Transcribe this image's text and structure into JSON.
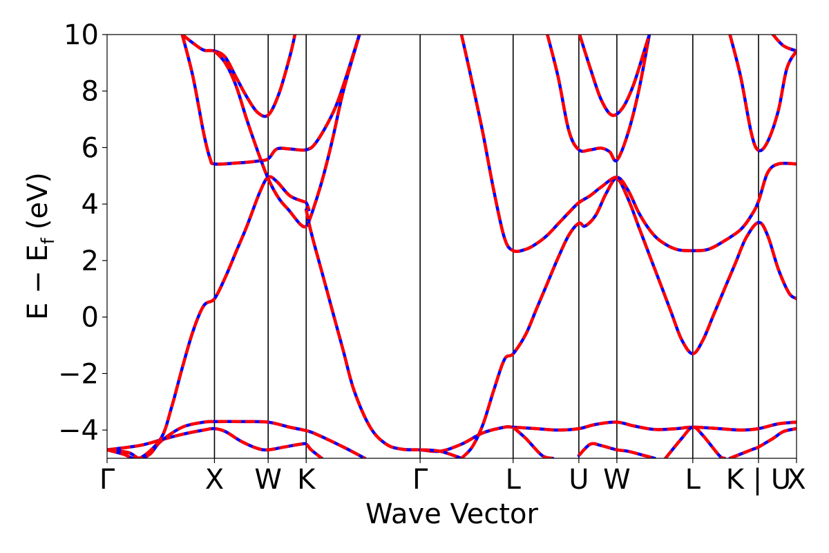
{
  "chart_data": {
    "type": "line",
    "title": "",
    "xlabel": "Wave Vector",
    "ylabel": "E − E",
    "ylabel_subscript": "f",
    "ylabel_unit": "(eV)",
    "ylim": [
      -5,
      10
    ],
    "yticks": [
      -4,
      -2,
      0,
      2,
      4,
      6,
      8,
      10
    ],
    "ytick_labels": [
      "−4",
      "−2",
      "0",
      "2",
      "4",
      "6",
      "8",
      "10"
    ],
    "x_path": [
      "Γ",
      "X",
      "W",
      "K",
      "Γ",
      "L",
      "U",
      "W",
      "L",
      "K | U",
      "X"
    ],
    "xticks": [
      {
        "x": 0.0,
        "label": "Γ"
      },
      {
        "x": 1.0,
        "label": "X"
      },
      {
        "x": 1.5,
        "label": "W"
      },
      {
        "x": 1.854,
        "label": "K"
      },
      {
        "x": 2.915,
        "label": "Γ"
      },
      {
        "x": 3.781,
        "label": "L"
      },
      {
        "x": 4.393,
        "label": "U"
      },
      {
        "x": 4.747,
        "label": "W"
      },
      {
        "x": 5.454,
        "label": "L"
      },
      {
        "x": 6.066,
        "label": "K | U"
      },
      {
        "x": 6.42,
        "label": "X"
      }
    ],
    "grid": false,
    "legend": "none",
    "series_style": [
      {
        "color": "#0000ff",
        "dash": "solid"
      },
      {
        "color": "#ff0000",
        "dash": "dashed"
      }
    ],
    "series": [
      {
        "values": [
          [
            0.0,
            -4.7
          ],
          [
            0.3,
            -4.55
          ],
          [
            0.5,
            -4.35
          ],
          [
            0.7,
            -4.15
          ],
          [
            0.9,
            -4.0
          ],
          [
            1.0,
            -3.95
          ],
          [
            1.1,
            -4.05
          ],
          [
            1.25,
            -4.4
          ],
          [
            1.4,
            -4.65
          ],
          [
            1.5,
            -4.7
          ],
          [
            1.65,
            -4.6
          ],
          [
            1.8,
            -4.5
          ],
          [
            1.854,
            -4.5
          ],
          [
            1.9,
            -4.7
          ],
          [
            2.0,
            -5.0
          ]
        ]
      },
      {
        "values": [
          [
            0.0,
            -4.7
          ],
          [
            0.2,
            -4.8
          ],
          [
            0.3,
            -5.0
          ],
          [
            0.4,
            -4.85
          ],
          [
            0.5,
            -4.4
          ],
          [
            0.7,
            -3.9
          ],
          [
            0.9,
            -3.72
          ],
          [
            1.0,
            -3.7
          ],
          [
            1.25,
            -3.7
          ],
          [
            1.5,
            -3.72
          ],
          [
            1.7,
            -3.9
          ],
          [
            1.854,
            -4.02
          ],
          [
            1.95,
            -4.15
          ],
          [
            2.2,
            -4.6
          ],
          [
            2.4,
            -5.0
          ]
        ]
      },
      {
        "values": [
          [
            0.0,
            -4.7
          ],
          [
            0.15,
            -4.85
          ],
          [
            0.3,
            -5.0
          ],
          [
            0.5,
            -4.3
          ],
          [
            0.6,
            -3.2
          ],
          [
            0.7,
            -1.8
          ],
          [
            0.8,
            -0.5
          ],
          [
            0.9,
            0.4
          ],
          [
            1.0,
            0.65
          ],
          [
            1.1,
            1.4
          ],
          [
            1.2,
            2.3
          ],
          [
            1.3,
            3.2
          ],
          [
            1.42,
            4.4
          ],
          [
            1.5,
            4.95
          ],
          [
            1.58,
            4.8
          ],
          [
            1.7,
            4.3
          ],
          [
            1.82,
            4.1
          ],
          [
            1.854,
            4.05
          ],
          [
            1.88,
            3.8
          ]
        ]
      },
      {
        "values": [
          [
            0.7,
            10.0
          ],
          [
            0.8,
            9.7
          ],
          [
            0.9,
            9.45
          ],
          [
            1.0,
            9.42
          ],
          [
            1.1,
            9.2
          ],
          [
            1.2,
            8.5
          ],
          [
            1.3,
            7.8
          ],
          [
            1.4,
            7.25
          ],
          [
            1.5,
            7.15
          ],
          [
            1.6,
            7.9
          ],
          [
            1.7,
            9.2
          ],
          [
            1.75,
            10.0
          ]
        ]
      },
      {
        "values": [
          [
            0.7,
            10.0
          ],
          [
            0.8,
            8.5
          ],
          [
            0.9,
            6.5
          ],
          [
            0.96,
            5.6
          ],
          [
            1.0,
            5.42
          ],
          [
            1.2,
            5.45
          ],
          [
            1.4,
            5.52
          ],
          [
            1.5,
            5.6
          ],
          [
            1.58,
            5.95
          ],
          [
            1.7,
            5.95
          ],
          [
            1.854,
            5.92
          ],
          [
            1.95,
            6.2
          ],
          [
            2.1,
            7.2
          ],
          [
            2.2,
            8.2
          ],
          [
            2.35,
            10.0
          ]
        ]
      },
      {
        "values": [
          [
            1.0,
            9.42
          ],
          [
            1.1,
            9.0
          ],
          [
            1.2,
            8.2
          ],
          [
            1.3,
            7.0
          ],
          [
            1.4,
            5.9
          ],
          [
            1.5,
            4.9
          ],
          [
            1.6,
            4.2
          ],
          [
            1.7,
            3.75
          ],
          [
            1.8,
            3.28
          ],
          [
            1.854,
            3.22
          ],
          [
            1.9,
            3.6
          ],
          [
            2.0,
            4.8
          ],
          [
            2.1,
            6.3
          ],
          [
            2.2,
            8.0
          ],
          [
            2.35,
            10.0
          ]
        ]
      },
      {
        "values": [
          [
            1.854,
            3.8
          ],
          [
            1.9,
            3.0
          ],
          [
            2.0,
            1.6
          ],
          [
            2.1,
            0.2
          ],
          [
            2.2,
            -1.2
          ],
          [
            2.3,
            -2.6
          ],
          [
            2.45,
            -3.9
          ],
          [
            2.6,
            -4.5
          ],
          [
            2.75,
            -4.68
          ],
          [
            2.915,
            -4.7
          ],
          [
            3.1,
            -4.75
          ],
          [
            3.3,
            -4.5
          ],
          [
            3.5,
            -4.1
          ],
          [
            3.7,
            -3.9
          ],
          [
            3.781,
            -3.9
          ],
          [
            4.0,
            -3.95
          ],
          [
            4.2,
            -4.0
          ],
          [
            4.393,
            -3.95
          ],
          [
            4.55,
            -3.8
          ],
          [
            4.747,
            -3.72
          ],
          [
            4.9,
            -3.85
          ],
          [
            5.1,
            -3.98
          ],
          [
            5.3,
            -3.95
          ],
          [
            5.454,
            -3.9
          ],
          [
            5.7,
            -3.95
          ],
          [
            5.9,
            -4.0
          ],
          [
            6.066,
            -3.95
          ],
          [
            6.25,
            -3.78
          ],
          [
            6.42,
            -3.72
          ]
        ]
      },
      {
        "values": [
          [
            2.915,
            -4.7
          ],
          [
            3.1,
            -4.75
          ],
          [
            3.3,
            -5.0
          ]
        ]
      },
      {
        "values": [
          [
            3.3,
            -5.0
          ],
          [
            3.4,
            -4.6
          ],
          [
            3.5,
            -3.8
          ],
          [
            3.6,
            -2.6
          ],
          [
            3.7,
            -1.5
          ],
          [
            3.781,
            -1.3
          ],
          [
            3.9,
            -0.6
          ],
          [
            4.0,
            0.3
          ],
          [
            4.1,
            1.2
          ],
          [
            4.2,
            2.1
          ],
          [
            4.3,
            2.9
          ],
          [
            4.393,
            3.32
          ],
          [
            4.45,
            3.22
          ],
          [
            4.55,
            3.6
          ],
          [
            4.65,
            4.4
          ],
          [
            4.747,
            4.9
          ],
          [
            4.85,
            4.2
          ],
          [
            4.95,
            3.2
          ],
          [
            5.05,
            2.2
          ],
          [
            5.15,
            1.2
          ],
          [
            5.25,
            0.2
          ],
          [
            5.35,
            -0.8
          ],
          [
            5.454,
            -1.3
          ],
          [
            5.55,
            -0.8
          ],
          [
            5.65,
            0.1
          ],
          [
            5.75,
            1.0
          ],
          [
            5.85,
            1.9
          ],
          [
            5.95,
            2.8
          ],
          [
            6.066,
            3.35
          ],
          [
            6.15,
            2.9
          ],
          [
            6.25,
            1.7
          ],
          [
            6.35,
            0.85
          ],
          [
            6.42,
            0.65
          ]
        ]
      },
      {
        "values": [
          [
            3.3,
            10.0
          ],
          [
            3.4,
            8.3
          ],
          [
            3.5,
            6.5
          ],
          [
            3.6,
            4.5
          ],
          [
            3.7,
            2.8
          ],
          [
            3.781,
            2.35
          ],
          [
            3.9,
            2.4
          ],
          [
            4.0,
            2.6
          ],
          [
            4.1,
            2.9
          ],
          [
            4.2,
            3.3
          ],
          [
            4.3,
            3.7
          ],
          [
            4.393,
            4.05
          ],
          [
            4.5,
            4.3
          ],
          [
            4.6,
            4.6
          ],
          [
            4.747,
            4.95
          ],
          [
            4.85,
            4.5
          ],
          [
            4.95,
            3.7
          ],
          [
            5.05,
            3.1
          ],
          [
            5.15,
            2.7
          ],
          [
            5.3,
            2.4
          ],
          [
            5.454,
            2.35
          ],
          [
            5.6,
            2.4
          ],
          [
            5.75,
            2.7
          ],
          [
            5.9,
            3.1
          ],
          [
            6.0,
            3.6
          ],
          [
            6.066,
            4.1
          ],
          [
            6.15,
            5.1
          ],
          [
            6.25,
            5.42
          ],
          [
            6.42,
            5.42
          ]
        ]
      },
      {
        "values": [
          [
            4.1,
            10.0
          ],
          [
            4.2,
            8.5
          ],
          [
            4.3,
            6.6
          ],
          [
            4.393,
            5.92
          ],
          [
            4.5,
            5.92
          ],
          [
            4.6,
            5.98
          ],
          [
            4.68,
            5.85
          ],
          [
            4.747,
            5.55
          ],
          [
            4.85,
            6.5
          ],
          [
            4.95,
            8.0
          ],
          [
            5.05,
            10.0
          ]
        ]
      },
      {
        "values": [
          [
            4.4,
            10.0
          ],
          [
            4.5,
            8.8
          ],
          [
            4.6,
            7.7
          ],
          [
            4.7,
            7.15
          ],
          [
            4.8,
            7.4
          ],
          [
            4.9,
            8.2
          ],
          [
            5.0,
            9.4
          ],
          [
            5.05,
            10.0
          ]
        ]
      },
      {
        "values": [
          [
            5.8,
            10.0
          ],
          [
            5.9,
            8.5
          ],
          [
            6.0,
            6.5
          ],
          [
            6.066,
            5.9
          ],
          [
            6.15,
            6.2
          ],
          [
            6.25,
            7.3
          ],
          [
            6.33,
            8.8
          ],
          [
            6.42,
            9.42
          ]
        ]
      },
      {
        "values": [
          [
            6.2,
            10.0
          ],
          [
            6.3,
            9.6
          ],
          [
            6.42,
            9.42
          ]
        ]
      },
      {
        "values": [
          [
            3.781,
            -3.9
          ],
          [
            3.9,
            -4.3
          ],
          [
            4.05,
            -4.9
          ],
          [
            4.15,
            -5.0
          ]
        ]
      },
      {
        "values": [
          [
            4.393,
            -4.9
          ],
          [
            4.5,
            -4.5
          ],
          [
            4.6,
            -4.55
          ],
          [
            4.747,
            -4.7
          ],
          [
            4.85,
            -4.75
          ],
          [
            5.0,
            -4.9
          ],
          [
            5.1,
            -5.0
          ]
        ]
      },
      {
        "values": [
          [
            5.2,
            -5.0
          ],
          [
            5.35,
            -4.3
          ],
          [
            5.454,
            -3.9
          ],
          [
            5.55,
            -4.2
          ],
          [
            5.7,
            -4.9
          ],
          [
            5.75,
            -5.0
          ]
        ]
      },
      {
        "values": [
          [
            5.8,
            -5.0
          ],
          [
            6.0,
            -4.7
          ],
          [
            6.066,
            -4.6
          ],
          [
            6.2,
            -4.3
          ],
          [
            6.3,
            -4.05
          ],
          [
            6.42,
            -3.95
          ]
        ]
      }
    ]
  }
}
